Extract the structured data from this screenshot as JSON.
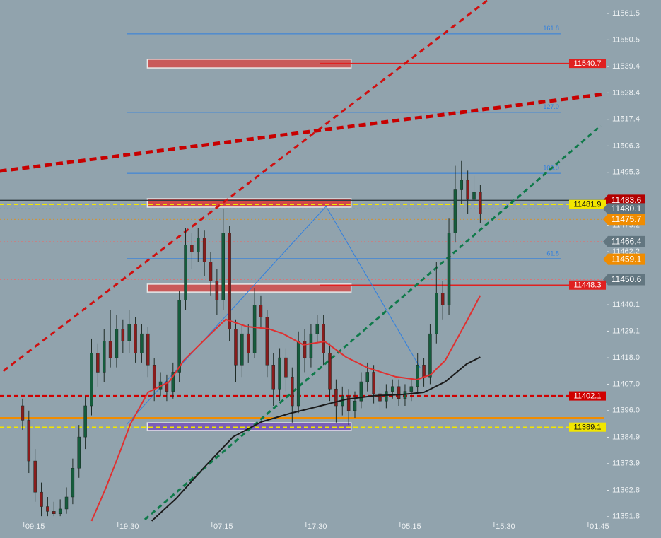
{
  "chart_data": {
    "type": "candlestick",
    "x": [
      -2,
      -1,
      0,
      1,
      2,
      3,
      4,
      5,
      6,
      7,
      8,
      9,
      10,
      11,
      12,
      13,
      14,
      15,
      16,
      17,
      18,
      19,
      20,
      21,
      22,
      23,
      24,
      25,
      26,
      27,
      28,
      29,
      30,
      31,
      32,
      33,
      34,
      35,
      36,
      37,
      38,
      39,
      40,
      41,
      42,
      43,
      44,
      45,
      46,
      47,
      48,
      49,
      50,
      51,
      52,
      53,
      54,
      55,
      56,
      57,
      58,
      59,
      60,
      61,
      62,
      63,
      64,
      65,
      66,
      67,
      68,
      69,
      70,
      71
    ],
    "open": [
      11398,
      11392,
      11375,
      11362,
      11356,
      11354,
      11353,
      11355,
      11360,
      11372,
      11385,
      11398,
      11420,
      11412,
      11425,
      11418,
      11430,
      11425,
      11432,
      11420,
      11428,
      11415,
      11405,
      11408,
      11404,
      11412,
      11442,
      11465,
      11462,
      11468,
      11458,
      11450,
      11442,
      11470,
      11430,
      11415,
      11428,
      11420,
      11440,
      11435,
      11415,
      11405,
      11418,
      11410,
      11398,
      11425,
      11418,
      11428,
      11432,
      11420,
      11405,
      11398,
      11402,
      11396,
      11400,
      11408,
      11412,
      11403,
      11400,
      11404,
      11406,
      11401,
      11404,
      11406,
      11415,
      11410,
      11428,
      11445,
      11440,
      11470,
      11488,
      11492,
      11484,
      11487
    ],
    "high": [
      11401,
      11396,
      11380,
      11366,
      11360,
      11358,
      11359,
      11364,
      11376,
      11390,
      11402,
      11426,
      11424,
      11430,
      11438,
      11436,
      11434,
      11438,
      11435,
      11432,
      11431,
      11418,
      11412,
      11411,
      11416,
      11446,
      11472,
      11470,
      11472,
      11471,
      11462,
      11455,
      11480,
      11473,
      11434,
      11432,
      11432,
      11447,
      11444,
      11438,
      11420,
      11422,
      11422,
      11414,
      11429,
      11430,
      11432,
      11436,
      11436,
      11424,
      11409,
      11406,
      11405,
      11404,
      11412,
      11416,
      11415,
      11406,
      11407,
      11409,
      11409,
      11407,
      11409,
      11420,
      11418,
      11432,
      11458,
      11450,
      11476,
      11498,
      11500,
      11496,
      11494,
      11490
    ],
    "low": [
      11388,
      11370,
      11358,
      11352,
      11352,
      11352,
      11352,
      11353,
      11357,
      11368,
      11380,
      11394,
      11406,
      11408,
      11414,
      11414,
      11420,
      11420,
      11416,
      11416,
      11410,
      11400,
      11402,
      11400,
      11401,
      11408,
      11438,
      11455,
      11458,
      11452,
      11444,
      11436,
      11438,
      11425,
      11408,
      11410,
      11416,
      11418,
      11430,
      11410,
      11398,
      11400,
      11404,
      11391,
      11395,
      11412,
      11414,
      11424,
      11415,
      11400,
      11391,
      11394,
      11390,
      11393,
      11397,
      11404,
      11399,
      11396,
      11397,
      11401,
      11398,
      11398,
      11400,
      11403,
      11406,
      11407,
      11424,
      11434,
      11436,
      11466,
      11482,
      11478,
      11480,
      11474
    ],
    "close": [
      11392,
      11375,
      11362,
      11356,
      11354,
      11353,
      11355,
      11360,
      11372,
      11385,
      11398,
      11420,
      11412,
      11425,
      11418,
      11430,
      11425,
      11432,
      11420,
      11428,
      11415,
      11405,
      11408,
      11404,
      11412,
      11442,
      11465,
      11462,
      11468,
      11458,
      11450,
      11442,
      11470,
      11430,
      11415,
      11428,
      11420,
      11440,
      11435,
      11415,
      11405,
      11418,
      11410,
      11398,
      11425,
      11418,
      11428,
      11432,
      11420,
      11405,
      11398,
      11402,
      11396,
      11400,
      11408,
      11412,
      11403,
      11400,
      11404,
      11406,
      11401,
      11404,
      11406,
      11415,
      11410,
      11428,
      11445,
      11440,
      11470,
      11488,
      11492,
      11484,
      11487,
      11478
    ],
    "up_color": "#155c3c",
    "down_color": "#8a1c1c",
    "xlim": [
      -5.6,
      90.8
    ],
    "ylim": [
      11348.8,
      11567.1
    ],
    "yticks": [
      11561.5,
      11550.5,
      11539.4,
      11528.4,
      11517.4,
      11506.3,
      11495.3,
      11473.2,
      11462.2,
      11440.1,
      11429.1,
      {
        "value": 11418.0,
        "label": "11418.0"
      },
      {
        "value": 11407.0,
        "label": "11407.0"
      },
      {
        "value": 11396.0,
        "label": "11396.0"
      },
      11384.9,
      11373.9,
      11362.8,
      11351.8
    ],
    "xticks": [
      {
        "value": 0,
        "label": "09:15"
      },
      {
        "value": 15,
        "label": "19:30"
      },
      {
        "value": 30,
        "label": "07:15"
      },
      {
        "value": 45,
        "label": "17:30"
      },
      {
        "value": 60,
        "label": "05:15"
      },
      {
        "value": 75,
        "label": "15:30"
      },
      {
        "value": 90,
        "label": "01:45"
      }
    ],
    "fib": [
      {
        "price": 11553.0,
        "label": "161.8"
      },
      {
        "price": 11520.3,
        "label": "127.0"
      },
      {
        "price": 11494.9,
        "label": "100.0"
      },
      {
        "price": 11459.3,
        "label": "61.8"
      }
    ],
    "fib_x": [
      14.66,
      83.8
    ],
    "fib_color": "#2f7fe0",
    "zones": [
      {
        "top": 11542.4,
        "bottom": 11538.8,
        "color": "#c95a5a"
      },
      {
        "top": 11484.3,
        "bottom": 11480.8,
        "color": "#d24848"
      },
      {
        "top": 11448.7,
        "bottom": 11445.4,
        "color": "#c95a5a"
      },
      {
        "top": 11390.9,
        "bottom": 11387.7,
        "color": "#7b5fb8"
      }
    ],
    "zone_x": [
      17.9,
      50.4
    ],
    "levels": [
      {
        "value": 11540.7,
        "color": "#e02020",
        "style": "solid",
        "start": 45.4,
        "tag": "box"
      },
      {
        "value": 11483.6,
        "color": "#b30000",
        "style": "solid",
        "start": -5.6,
        "tag": "arrow",
        "line": "#303a40"
      },
      {
        "value": 11481.9,
        "color": "#f2e600",
        "style": "dashed",
        "start": -5.6,
        "tag": "box"
      },
      {
        "value": 11480.1,
        "color": "#627680",
        "style": "dotted",
        "start": -5.6,
        "tag": "arrow",
        "line": "#2f7fe0"
      },
      {
        "value": 11475.7,
        "color": "#f08c00",
        "style": "dotted",
        "start": -5.6,
        "tag": "arrow"
      },
      {
        "value": 11466.4,
        "color": "#627680",
        "style": "dotted",
        "start": -5.6,
        "tag": "arrow",
        "line": "#e07070"
      },
      {
        "value": 11459.1,
        "color": "#f08c00",
        "style": "dotted",
        "start": -5.6,
        "tag": "arrow"
      },
      {
        "value": 11450.6,
        "color": "#627680",
        "style": "dotted",
        "start": -5.6,
        "tag": "arrow",
        "line": "#e07070"
      },
      {
        "value": 11448.3,
        "color": "#e02020",
        "style": "solid",
        "start": 45.4,
        "tag": "box"
      },
      {
        "value": 11402.1,
        "color": "#d00000",
        "style": "dashed",
        "start": -5.6,
        "tag": "box"
      },
      {
        "value": 11389.1,
        "color": "#f2e600",
        "style": "dashed",
        "start": -5.6,
        "tag": "box"
      }
    ],
    "trendlines": [
      {
        "x": [
          -5.07,
          72.2
        ],
        "y": [
          11412.5,
          11567.1
        ],
        "color": "#d01010",
        "width": 3,
        "dash": "8 6"
      },
      {
        "x": [
          -5.64,
          90.76
        ],
        "y": [
          11495.8,
          11527.9
        ],
        "color": "#c80000",
        "width": 5,
        "dash": "10 6"
      },
      {
        "x": [
          17.5,
          90.2
        ],
        "y": [
          11350.6,
          11514.7
        ],
        "color": "#0f7a4a",
        "width": 3,
        "dash": "7 5"
      },
      {
        "x": [
          14.66,
          46.4,
          61.4
        ],
        "y": [
          11390.4,
          11481.1,
          11413.9
        ],
        "color": "#2f7fe0",
        "width": 1,
        "dash": ""
      }
    ],
    "ma": [
      {
        "color": "#e03030",
        "x": [
          9.0,
          11.3,
          13.5,
          15.2,
          18.0,
          21.4,
          23.7,
          27.1,
          30.4,
          33.8,
          37.2,
          39.5,
          42.8,
          46.2,
          49.6,
          53.0,
          57.5,
          60.9,
          63.1,
          65.4,
          68.8,
          71.0
        ],
        "y": [
          11350.0,
          11363.9,
          11378.6,
          11390.4,
          11403.6,
          11408.0,
          11416.9,
          11425.7,
          11434.0,
          11431.0,
          11430.1,
          11428.1,
          11423.4,
          11424.8,
          11418.3,
          11413.9,
          11410.1,
          11408.9,
          11411.0,
          11416.9,
          11433.1,
          11444.0
        ]
      },
      {
        "color": "#1a1a1a",
        "x": [
          18.6,
          22.5,
          27.1,
          31.6,
          36.1,
          40.6,
          45.1,
          49.6,
          54.1,
          58.6,
          62.0,
          65.4,
          68.8,
          71.0
        ],
        "y": [
          11350.0,
          11359.4,
          11372.7,
          11385.1,
          11391.3,
          11394.8,
          11397.7,
          11400.7,
          11402.2,
          11402.7,
          11403.6,
          11408.0,
          11415.4,
          11418.3
        ]
      }
    ],
    "orange_level": {
      "value": 11393.0,
      "color": "#f08c00"
    }
  }
}
